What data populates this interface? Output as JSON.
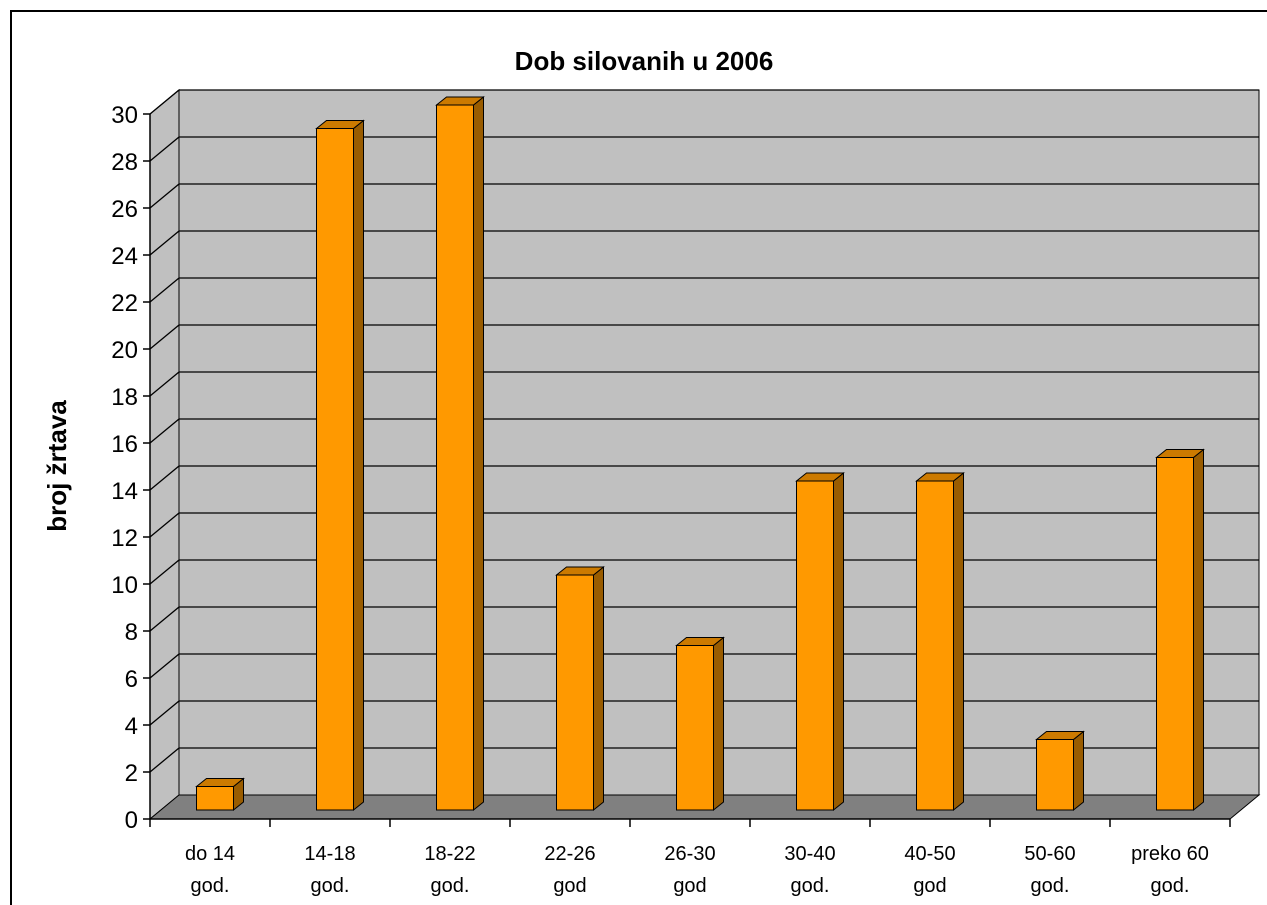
{
  "chart_data": {
    "type": "bar",
    "title": "Dob silovanih u 2006",
    "xlabel": "",
    "ylabel": "broj žrtava",
    "ylim": [
      0,
      30
    ],
    "yticks": [
      0,
      2,
      4,
      6,
      8,
      10,
      12,
      14,
      16,
      18,
      20,
      22,
      24,
      26,
      28,
      30
    ],
    "categories": [
      [
        "do 14",
        "god."
      ],
      [
        "14-18",
        "god."
      ],
      [
        "18-22",
        "god."
      ],
      [
        "22-26",
        "god"
      ],
      [
        "26-30",
        "god"
      ],
      [
        "30-40",
        "god."
      ],
      [
        "40-50",
        "god"
      ],
      [
        "50-60",
        "god."
      ],
      [
        "preko 60",
        "god."
      ]
    ],
    "values": [
      1,
      29,
      30,
      10,
      7,
      14,
      14,
      3,
      15
    ],
    "grid": true,
    "legend": "none",
    "three_d": true
  },
  "colors": {
    "bar_front": "#FF9900",
    "bar_side": "#995C00",
    "bar_top": "#CC7A00",
    "wall": "#C0C0C0",
    "floor": "#808080",
    "grid": "#000000"
  }
}
